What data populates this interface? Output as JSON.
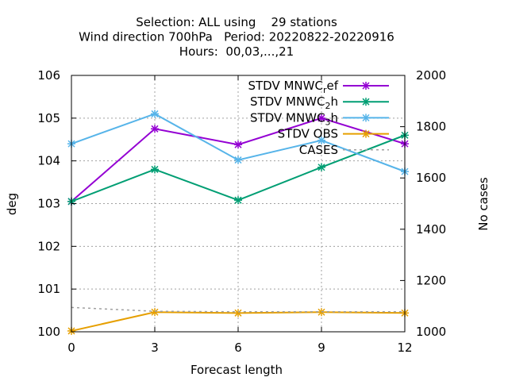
{
  "chart_data": {
    "type": "line",
    "title_lines": [
      "Selection: ALL using    29 stations",
      "Wind direction 700hPa   Period: 20220822-20220916",
      "Hours:  00,03,...,21"
    ],
    "xlabel": "Forecast length",
    "ylabel": "deg",
    "y2label": "No cases",
    "x": [
      0,
      3,
      6,
      9,
      12
    ],
    "xlim": [
      0,
      12
    ],
    "ylim": [
      100,
      106
    ],
    "y2lim": [
      1000,
      2000
    ],
    "xticks": [
      "0",
      "3",
      "6",
      "9",
      "12"
    ],
    "yticks": [
      "100",
      "101",
      "102",
      "103",
      "104",
      "105",
      "106"
    ],
    "y2ticks": [
      "1000",
      "1200",
      "1400",
      "1600",
      "1800",
      "2000"
    ],
    "grid": true,
    "legend_position": "top-right",
    "series": [
      {
        "name": "STDV MNWC_ref",
        "name_main": "STDV MNWC",
        "name_sub": "r",
        "name_rest": "ef",
        "color": "#9400d3",
        "axis": "y",
        "values": [
          103.05,
          104.75,
          104.38,
          105.0,
          104.4
        ]
      },
      {
        "name": "STDV MNWC_2h",
        "name_main": "STDV MNWC",
        "name_sub": "2",
        "name_rest": "h",
        "color": "#009e73",
        "axis": "y",
        "values": [
          103.05,
          103.8,
          103.08,
          103.85,
          104.6
        ]
      },
      {
        "name": "STDV MNWC_3h",
        "name_main": "STDV MNWC",
        "name_sub": "3",
        "name_rest": "h",
        "color": "#56b4e9",
        "axis": "y",
        "values": [
          104.4,
          105.1,
          104.02,
          104.48,
          103.75
        ]
      },
      {
        "name": "STDV OBS",
        "name_main": "STDV OBS",
        "name_sub": "",
        "name_rest": "",
        "color": "#e69f00",
        "axis": "y",
        "values": [
          100.02,
          100.46,
          100.44,
          100.46,
          100.44
        ]
      },
      {
        "name": "CASES",
        "name_main": "CASES",
        "name_sub": "",
        "name_rest": "",
        "color": "#a0a0a0",
        "axis": "y2",
        "dashed": true,
        "values": [
          1095,
          1080,
          1078,
          1078,
          1078
        ]
      }
    ]
  }
}
